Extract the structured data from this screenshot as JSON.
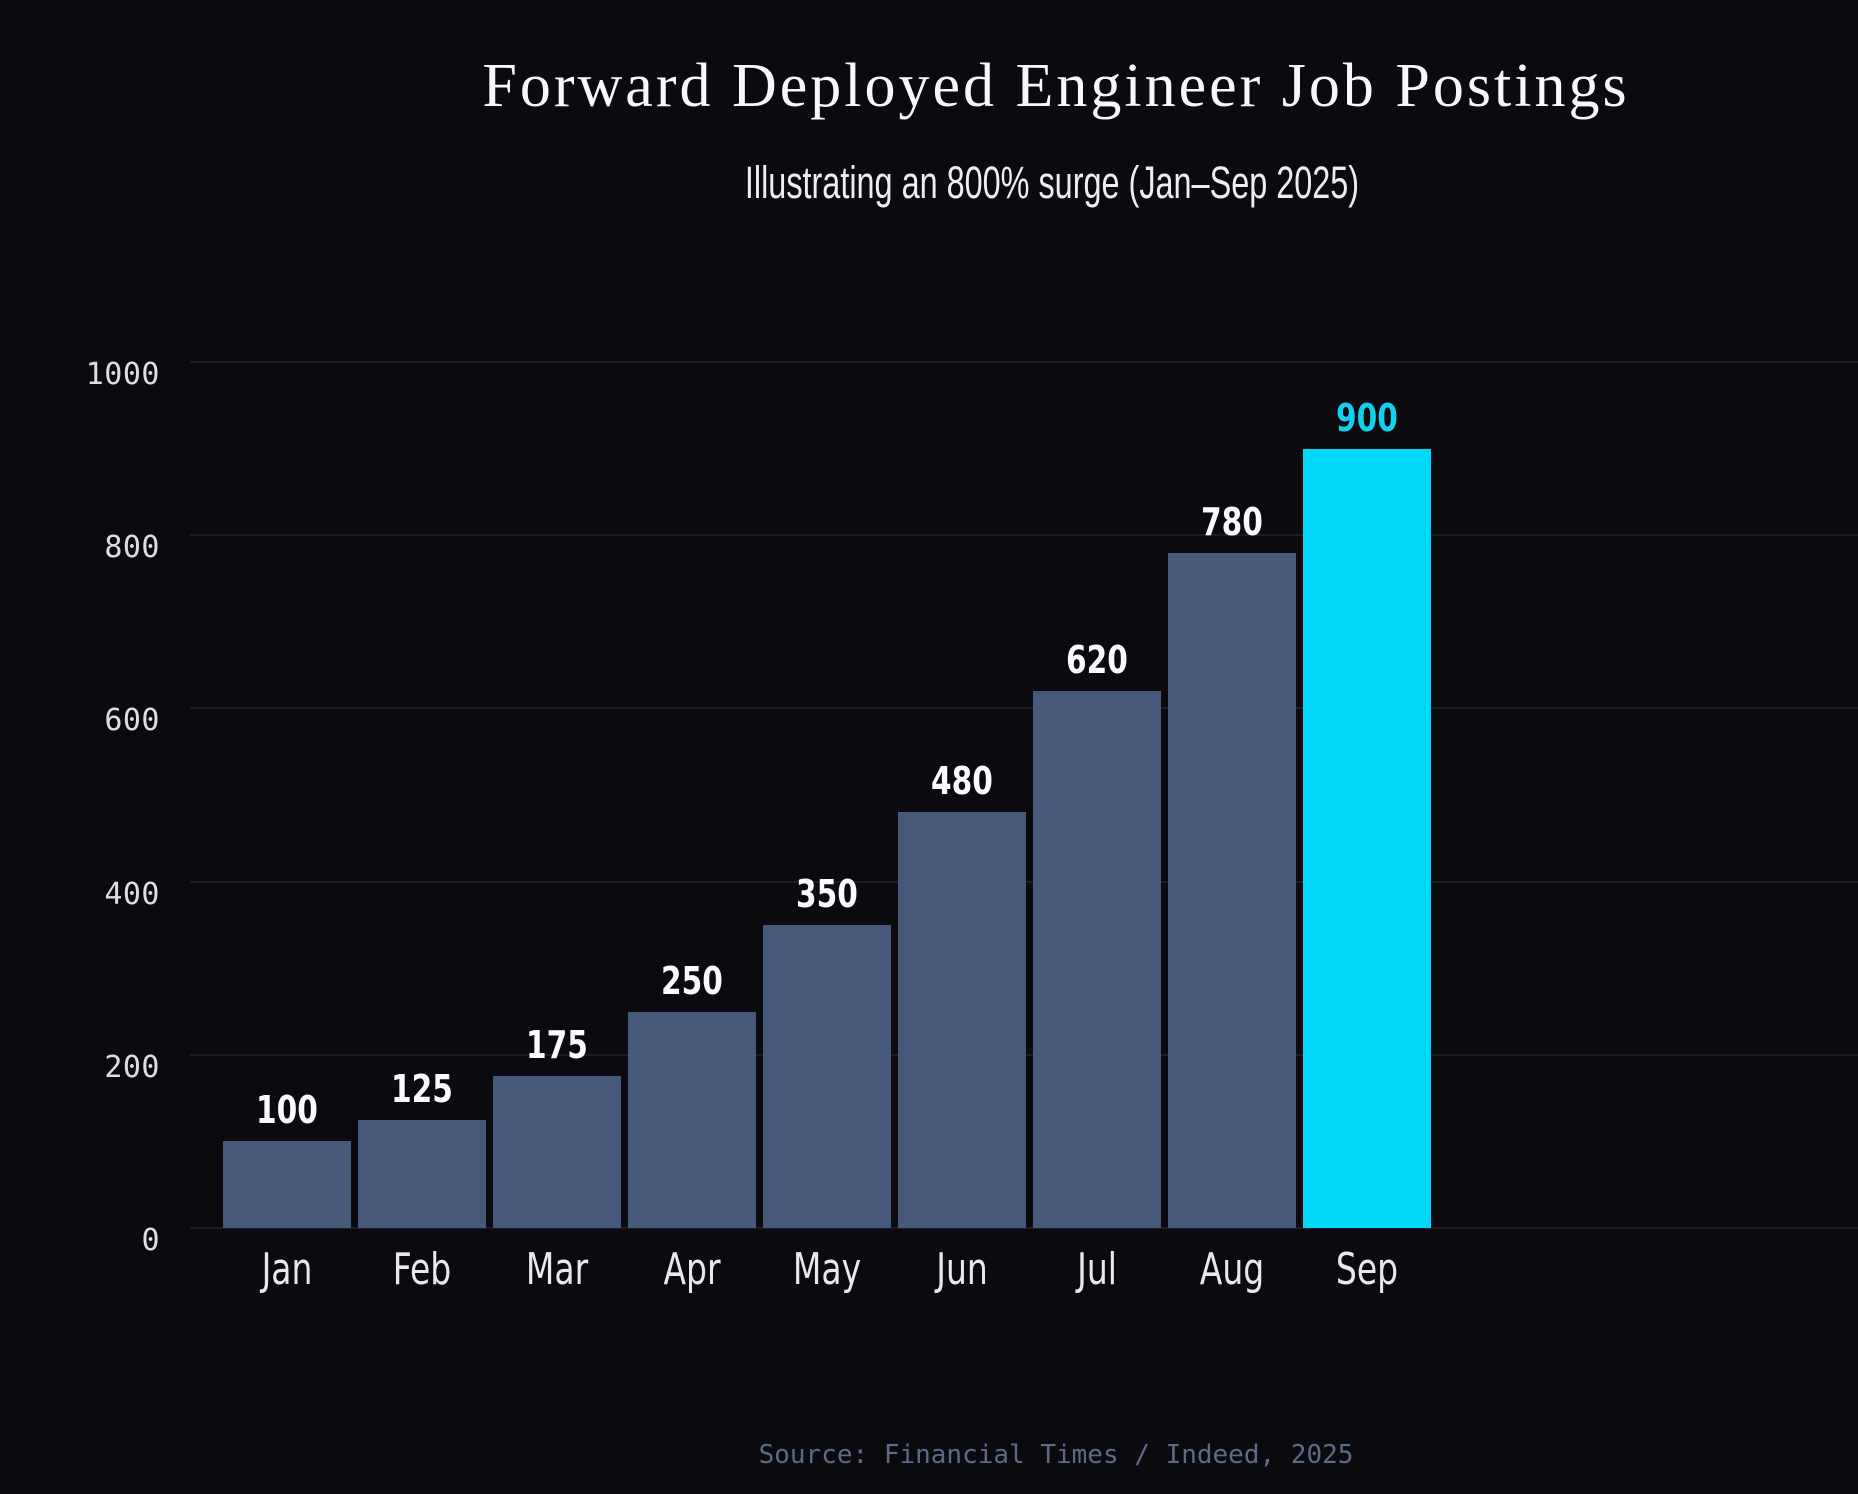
{
  "header": {
    "title": "Forward Deployed Engineer Job Postings",
    "subtitle": "Illustrating an 800% surge (Jan–Sep 2025)"
  },
  "footer": {
    "source": "Source: Financial Times / Indeed, 2025"
  },
  "colors": {
    "background": "#0a0a0f",
    "bar": "#46597b",
    "highlight_bar": "#00d8fa",
    "highlight_value_label": "#12d1f0",
    "value_label": "#fbfbfd",
    "y_tick_label": "#dcdee4",
    "x_tick_label": "#e7e9ed",
    "gridline": "rgba(150,160,195,0.13)",
    "source_text": "#5c6b88",
    "title_text": "#f7f8fa",
    "subtitle_text": "#eceef2"
  },
  "chart_data": {
    "type": "bar",
    "title": "Forward Deployed Engineer Job Postings",
    "subtitle": "Illustrating an 800% surge (Jan–Sep 2025)",
    "categories": [
      "Jan",
      "Feb",
      "Mar",
      "Apr",
      "May",
      "Jun",
      "Jul",
      "Aug",
      "Sep"
    ],
    "values": [
      100,
      125,
      175,
      250,
      350,
      480,
      620,
      780,
      900
    ],
    "value_labels_shown": true,
    "highlight_index": 8,
    "highlight_category": "Sep",
    "xlabel": "",
    "ylabel": "",
    "ylim": [
      0,
      1000
    ],
    "yticks": [
      0,
      200,
      400,
      600,
      800,
      1000
    ],
    "grid": "horizontal",
    "legend": "none",
    "source": "Source: Financial Times / Indeed, 2025"
  }
}
